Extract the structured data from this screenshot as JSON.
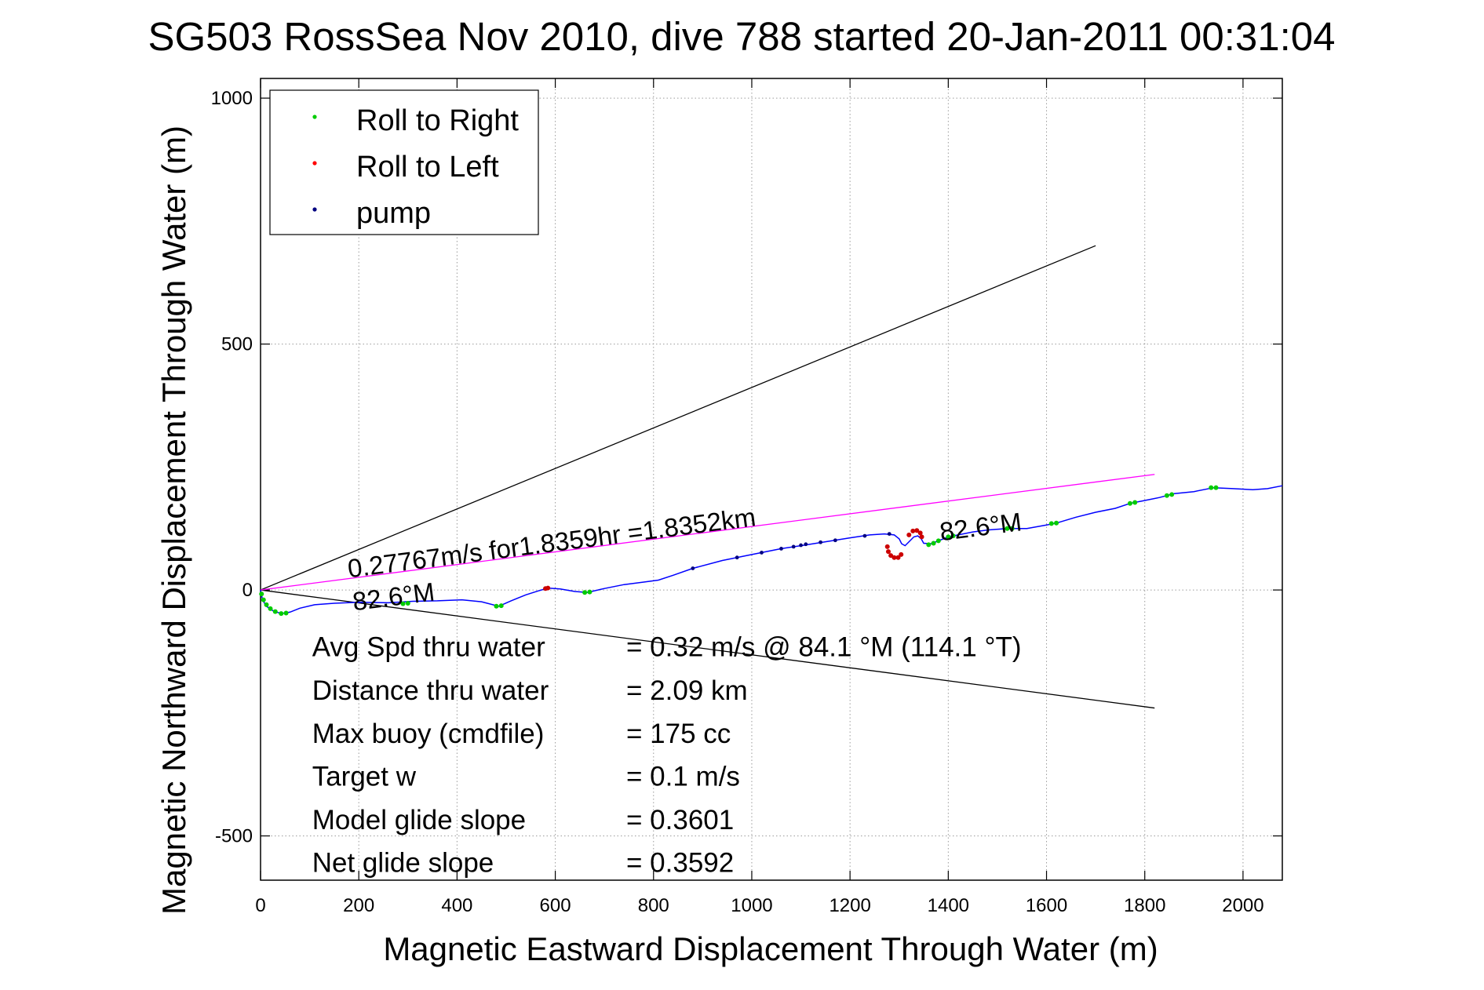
{
  "chart_data": {
    "type": "line",
    "title": "SG503 RossSea Nov 2010, dive 788 started 20-Jan-2011 00:31:04",
    "xlabel": "Magnetic Eastward Displacement Through Water (m)",
    "ylabel": "Magnetic Northward Displacement Through Water (m)",
    "xlim": [
      0,
      2080
    ],
    "ylim": [
      -590,
      1040
    ],
    "xticks": [
      0,
      200,
      400,
      600,
      800,
      1000,
      1200,
      1400,
      1600,
      1800,
      2000
    ],
    "yticks": [
      -500,
      0,
      500,
      1000
    ],
    "grid": true,
    "legend_position": "top-left",
    "legend": [
      {
        "label": "Roll to Right",
        "color": "#00cc00"
      },
      {
        "label": "Roll to Left",
        "color": "#ff0000"
      },
      {
        "label": "pump",
        "color": "#000080"
      }
    ],
    "series": [
      {
        "kind": "track",
        "color": "#0000ff",
        "points": [
          [
            0,
            0
          ],
          [
            4,
            -20
          ],
          [
            12,
            -33
          ],
          [
            25,
            -42
          ],
          [
            42,
            -48
          ],
          [
            60,
            -45
          ],
          [
            80,
            -37
          ],
          [
            110,
            -30
          ],
          [
            150,
            -27
          ],
          [
            200,
            -25
          ],
          [
            260,
            -26
          ],
          [
            310,
            -23
          ],
          [
            360,
            -22
          ],
          [
            410,
            -20
          ],
          [
            450,
            -24
          ],
          [
            485,
            -33
          ],
          [
            510,
            -22
          ],
          [
            540,
            -10
          ],
          [
            565,
            -2
          ],
          [
            585,
            4
          ],
          [
            610,
            2
          ],
          [
            640,
            -3
          ],
          [
            665,
            -5
          ],
          [
            700,
            3
          ],
          [
            740,
            11
          ],
          [
            780,
            16
          ],
          [
            810,
            20
          ],
          [
            840,
            30
          ],
          [
            880,
            44
          ],
          [
            940,
            60
          ],
          [
            1000,
            72
          ],
          [
            1060,
            84
          ],
          [
            1100,
            90
          ],
          [
            1150,
            98
          ],
          [
            1200,
            106
          ],
          [
            1240,
            112
          ],
          [
            1270,
            114
          ],
          [
            1290,
            112
          ],
          [
            1300,
            104
          ],
          [
            1305,
            94
          ],
          [
            1312,
            90
          ],
          [
            1320,
            98
          ],
          [
            1330,
            108
          ],
          [
            1338,
            110
          ],
          [
            1345,
            104
          ],
          [
            1350,
            95
          ],
          [
            1365,
            94
          ],
          [
            1380,
            100
          ],
          [
            1400,
            108
          ],
          [
            1420,
            112
          ],
          [
            1450,
            118
          ],
          [
            1480,
            122
          ],
          [
            1520,
            125
          ],
          [
            1560,
            125
          ],
          [
            1600,
            132
          ],
          [
            1620,
            136
          ],
          [
            1660,
            148
          ],
          [
            1700,
            158
          ],
          [
            1740,
            166
          ],
          [
            1770,
            176
          ],
          [
            1800,
            182
          ],
          [
            1830,
            188
          ],
          [
            1860,
            196
          ],
          [
            1900,
            200
          ],
          [
            1940,
            208
          ],
          [
            1980,
            206
          ],
          [
            2020,
            204
          ],
          [
            2050,
            206
          ],
          [
            2080,
            212
          ]
        ]
      },
      {
        "kind": "roll-right",
        "color": "#00cc00",
        "points": [
          [
            2,
            -8
          ],
          [
            6,
            -20
          ],
          [
            12,
            -30
          ],
          [
            20,
            -38
          ],
          [
            30,
            -44
          ],
          [
            42,
            -48
          ],
          [
            52,
            -47
          ],
          [
            290,
            -28
          ],
          [
            300,
            -27
          ],
          [
            480,
            -33
          ],
          [
            490,
            -32
          ],
          [
            660,
            -5
          ],
          [
            670,
            -4
          ],
          [
            1360,
            92
          ],
          [
            1370,
            95
          ],
          [
            1380,
            100
          ],
          [
            1400,
            108
          ],
          [
            1410,
            110
          ],
          [
            1520,
            125
          ],
          [
            1530,
            125
          ],
          [
            1610,
            135
          ],
          [
            1620,
            136
          ],
          [
            1770,
            176
          ],
          [
            1780,
            178
          ],
          [
            1845,
            192
          ],
          [
            1855,
            194
          ],
          [
            1935,
            208
          ],
          [
            1945,
            208
          ]
        ]
      },
      {
        "kind": "roll-left",
        "color": "#cc0000",
        "points": [
          [
            1276,
            88
          ],
          [
            1278,
            78
          ],
          [
            1283,
            70
          ],
          [
            1290,
            66
          ],
          [
            1298,
            66
          ],
          [
            1304,
            72
          ],
          [
            1320,
            112
          ],
          [
            1328,
            120
          ],
          [
            1336,
            121
          ],
          [
            1343,
            116
          ],
          [
            1346,
            108
          ],
          [
            580,
            3
          ],
          [
            585,
            4
          ]
        ]
      },
      {
        "kind": "pump",
        "color": "#000080",
        "points": [
          [
            880,
            44
          ],
          [
            970,
            66
          ],
          [
            1020,
            76
          ],
          [
            1060,
            84
          ],
          [
            1085,
            88
          ],
          [
            1100,
            91
          ],
          [
            1110,
            93
          ],
          [
            1140,
            97
          ],
          [
            1170,
            101
          ],
          [
            1230,
            110
          ],
          [
            1280,
            114
          ]
        ]
      }
    ],
    "reference_lines": [
      {
        "name": "upper-heading-line",
        "color": "#000000",
        "from": [
          0,
          0
        ],
        "to": [
          1700,
          700
        ]
      },
      {
        "name": "lower-heading-line",
        "color": "#000000",
        "from": [
          0,
          0
        ],
        "to": [
          1820,
          -240
        ]
      },
      {
        "name": "average-velocity-line",
        "color": "#ff00ff",
        "from": [
          0,
          0
        ],
        "to": [
          1820,
          235
        ]
      }
    ],
    "annotations": [
      {
        "text": "0.27767m/s for1.8359hr =1.8352km",
        "x": 180,
        "y": 25,
        "rotate": -7.3,
        "size": 33
      },
      {
        "text": "82.6°M",
        "x": 190,
        "y": -42,
        "rotate": -7.3,
        "size": 33
      },
      {
        "text": "82.6°M",
        "x": 1385,
        "y": 100,
        "rotate": -7.3,
        "size": 33
      }
    ],
    "stats": [
      {
        "label": "Avg Spd thru water",
        "value": "=  0.32 m/s @  84.1 °M (114.1 °T)",
        "x": 105,
        "y": -135
      },
      {
        "label": "Distance thru water",
        "value": "=  2.09 km",
        "x": 105,
        "y": -223
      },
      {
        "label": "Max buoy (cmdfile)",
        "value": "= 175 cc",
        "x": 105,
        "y": -311
      },
      {
        "label": "Target w",
        "value": "= 0.1 m/s",
        "x": 105,
        "y": -398
      },
      {
        "label": "Model glide slope",
        "value": "= 0.3601",
        "x": 105,
        "y": -486
      },
      {
        "label": "Net glide slope",
        "value": "= 0.3592",
        "x": 105,
        "y": -573
      }
    ]
  }
}
